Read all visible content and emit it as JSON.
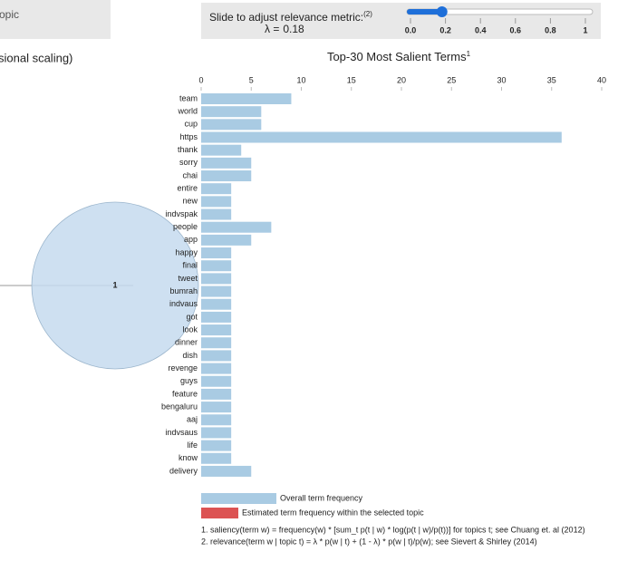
{
  "left_panel": {
    "topic_box_text": "opic",
    "scaling_text": "sional scaling)",
    "topic_circle_label": "1"
  },
  "slider": {
    "label": "Slide to adjust relevance metric:",
    "label_note": "(2)",
    "lambda_text": "λ =",
    "value": 0.18,
    "range": [
      0,
      1
    ],
    "ticks": [
      {
        "value": 0,
        "label": "0.0"
      },
      0.2,
      0.4,
      0.6,
      0.8,
      1
    ]
  },
  "chart_data": {
    "type": "bar",
    "orientation": "horizontal",
    "title": "Top-30 Most Salient Terms",
    "title_note": "1",
    "categories": [
      "team",
      "world",
      "cup",
      "https",
      "thank",
      "sorry",
      "chai",
      "entire",
      "new",
      "indvspak",
      "people",
      "app",
      "happy",
      "final",
      "tweet",
      "bumrah",
      "indvaus",
      "got",
      "look",
      "dinner",
      "dish",
      "revenge",
      "guys",
      "feature",
      "bengaluru",
      "aaj",
      "indvsaus",
      "life",
      "know",
      "delivery"
    ],
    "series": [
      {
        "name": "Overall term frequency",
        "color": "#a9cbe3",
        "values": [
          9,
          6,
          6,
          36,
          4,
          5,
          5,
          3,
          3,
          3,
          7,
          5,
          3,
          3,
          3,
          3,
          3,
          3,
          3,
          3,
          3,
          3,
          3,
          3,
          3,
          3,
          3,
          3,
          3,
          5
        ]
      }
    ],
    "extra_legend": {
      "name": "Estimated term frequency within the selected topic",
      "color": "#dc5353"
    },
    "xlim": [
      0,
      40
    ],
    "xticks": [
      0,
      5,
      10,
      15,
      20,
      25,
      30,
      35,
      40
    ],
    "footnotes": [
      "1. saliency(term w) = frequency(w) * [sum_t p(t | w) * log(p(t | w)/p(t))] for topics t; see Chuang et. al (2012)",
      "2. relevance(term w | topic t) = λ * p(w | t) + (1 - λ) * p(w | t)/p(w); see Sievert & Shirley (2014)"
    ]
  }
}
